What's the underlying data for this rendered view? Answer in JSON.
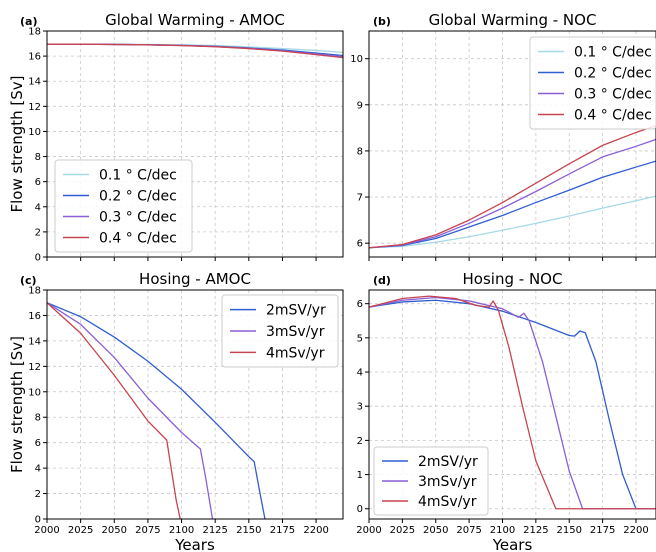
{
  "colors": {
    "light_blue": "#a6d9e6",
    "blue": "#2f5ed1",
    "purple": "#8a5fd8",
    "red": "#c8444f"
  },
  "chart_data": [
    {
      "panel": "(a)",
      "title": "Global Warming - AMOC",
      "type": "line",
      "ylabel": "Flow strength [Sv]",
      "xlabel": "",
      "xlim": [
        2000,
        2220
      ],
      "ylim": [
        0,
        18
      ],
      "xticks": [
        2000,
        2025,
        2050,
        2075,
        2100,
        2125,
        2150,
        2175,
        2200
      ],
      "yticks": [
        0,
        2,
        4,
        6,
        8,
        10,
        12,
        14,
        16,
        18
      ],
      "show_xtick_labels": false,
      "legend": "lower-left",
      "grid": true,
      "series": [
        {
          "name": "0.1  ° C/dec",
          "color": "#a6d9e6",
          "x": [
            2000,
            2025,
            2050,
            2075,
            2100,
            2125,
            2150,
            2175,
            2200,
            2220
          ],
          "y": [
            16.95,
            16.95,
            16.94,
            16.92,
            16.89,
            16.84,
            16.73,
            16.6,
            16.45,
            16.3
          ]
        },
        {
          "name": "0.2  ° C/dec",
          "color": "#2f5ed1",
          "x": [
            2000,
            2025,
            2050,
            2075,
            2100,
            2125,
            2150,
            2175,
            2200,
            2220
          ],
          "y": [
            16.95,
            16.95,
            16.93,
            16.9,
            16.86,
            16.78,
            16.65,
            16.48,
            16.25,
            16.05
          ]
        },
        {
          "name": "0.3  ° C/dec",
          "color": "#8a5fd8",
          "x": [
            2000,
            2025,
            2050,
            2075,
            2100,
            2125,
            2150,
            2175,
            2200,
            2220
          ],
          "y": [
            16.95,
            16.95,
            16.93,
            16.9,
            16.85,
            16.76,
            16.62,
            16.43,
            16.18,
            15.95
          ]
        },
        {
          "name": "0.4  ° C/dec",
          "color": "#c8444f",
          "x": [
            2000,
            2025,
            2050,
            2075,
            2100,
            2125,
            2150,
            2175,
            2200,
            2220
          ],
          "y": [
            16.95,
            16.95,
            16.93,
            16.9,
            16.84,
            16.75,
            16.6,
            16.4,
            16.12,
            15.88
          ]
        }
      ]
    },
    {
      "panel": "(b)",
      "title": "Global Warming - NOC",
      "type": "line",
      "ylabel": "",
      "xlabel": "",
      "xlim": [
        2000,
        2215
      ],
      "ylim": [
        5.7,
        10.6
      ],
      "xticks": [
        2000,
        2025,
        2050,
        2075,
        2100,
        2125,
        2150,
        2175,
        2200
      ],
      "yticks": [
        6,
        7,
        8,
        9,
        10
      ],
      "show_xtick_labels": false,
      "legend": "top-right",
      "grid": true,
      "series": [
        {
          "name": "0.1  ° C/dec",
          "color": "#a6d9e6",
          "x": [
            2000,
            2025,
            2050,
            2075,
            2100,
            2125,
            2150,
            2175,
            2200,
            2215
          ],
          "y": [
            5.9,
            5.93,
            6.02,
            6.14,
            6.28,
            6.43,
            6.59,
            6.76,
            6.92,
            7.02
          ]
        },
        {
          "name": "0.2  ° C/dec",
          "color": "#2f5ed1",
          "x": [
            2000,
            2025,
            2050,
            2075,
            2100,
            2125,
            2150,
            2175,
            2200,
            2215
          ],
          "y": [
            5.9,
            5.95,
            6.1,
            6.35,
            6.6,
            6.88,
            7.15,
            7.43,
            7.65,
            7.78
          ]
        },
        {
          "name": "0.3  ° C/dec",
          "color": "#8a5fd8",
          "x": [
            2000,
            2025,
            2050,
            2075,
            2100,
            2125,
            2150,
            2175,
            2200,
            2215
          ],
          "y": [
            5.9,
            5.96,
            6.14,
            6.43,
            6.76,
            7.12,
            7.5,
            7.87,
            8.1,
            8.25
          ]
        },
        {
          "name": "0.4  ° C/dec",
          "color": "#c8444f",
          "x": [
            2000,
            2025,
            2050,
            2075,
            2100,
            2125,
            2150,
            2175,
            2200,
            2215
          ],
          "y": [
            5.9,
            5.97,
            6.18,
            6.5,
            6.88,
            7.3,
            7.72,
            8.12,
            8.4,
            8.55
          ]
        }
      ]
    },
    {
      "panel": "(c)",
      "title": "Hosing - AMOC",
      "type": "line",
      "ylabel": "Flow strength [Sv]",
      "xlabel": "Years",
      "xlim": [
        2000,
        2220
      ],
      "ylim": [
        0,
        18
      ],
      "xticks": [
        2000,
        2025,
        2050,
        2075,
        2100,
        2125,
        2150,
        2175,
        2200
      ],
      "yticks": [
        0,
        2,
        4,
        6,
        8,
        10,
        12,
        14,
        16,
        18
      ],
      "show_xtick_labels": true,
      "legend": "top-right",
      "grid": true,
      "series": [
        {
          "name": "2mSV/yr",
          "color": "#2f5ed1",
          "x": [
            2000,
            2025,
            2050,
            2075,
            2100,
            2125,
            2150,
            2154,
            2158,
            2162
          ],
          "y": [
            17,
            15.9,
            14.3,
            12.4,
            10.2,
            7.6,
            4.9,
            4.5,
            2.2,
            0
          ]
        },
        {
          "name": "3mSv/yr",
          "color": "#8a5fd8",
          "x": [
            2000,
            2025,
            2050,
            2075,
            2100,
            2114,
            2118,
            2121,
            2123
          ],
          "y": [
            17,
            15.3,
            12.7,
            9.5,
            6.8,
            5.5,
            3.2,
            1.3,
            0
          ]
        },
        {
          "name": "4mSv/yr",
          "color": "#c8444f",
          "x": [
            2000,
            2025,
            2050,
            2075,
            2089,
            2093,
            2096,
            2099
          ],
          "y": [
            17,
            14.6,
            11.3,
            7.7,
            6.2,
            3.5,
            1.5,
            0
          ]
        }
      ]
    },
    {
      "panel": "(d)",
      "title": "Hosing - NOC",
      "type": "line",
      "ylabel": "",
      "xlabel": "Years",
      "xlim": [
        2000,
        2215
      ],
      "ylim": [
        -0.3,
        6.4
      ],
      "xticks": [
        2000,
        2025,
        2050,
        2075,
        2100,
        2125,
        2150,
        2175,
        2200
      ],
      "yticks": [
        0,
        1,
        2,
        3,
        4,
        5,
        6
      ],
      "show_xtick_labels": true,
      "legend": "lower-left",
      "grid": true,
      "series": [
        {
          "name": "2mSV/yr",
          "color": "#2f5ed1",
          "x": [
            2000,
            2025,
            2050,
            2075,
            2100,
            2125,
            2150,
            2154,
            2158,
            2162,
            2170,
            2180,
            2190,
            2200,
            2215
          ],
          "y": [
            5.9,
            6.05,
            6.1,
            6.0,
            5.78,
            5.45,
            5.07,
            5.05,
            5.2,
            5.15,
            4.3,
            2.6,
            1.0,
            0.0,
            0.0
          ]
        },
        {
          "name": "3mSv/yr",
          "color": "#8a5fd8",
          "x": [
            2000,
            2025,
            2050,
            2075,
            2100,
            2112,
            2116,
            2120,
            2130,
            2140,
            2150,
            2160,
            2175,
            2200,
            2215
          ],
          "y": [
            5.9,
            6.1,
            6.18,
            6.08,
            5.85,
            5.6,
            5.72,
            5.5,
            4.3,
            2.7,
            1.1,
            0.0,
            0.0,
            0.0,
            0.0
          ]
        },
        {
          "name": "4mSv/yr",
          "color": "#c8444f",
          "x": [
            2000,
            2025,
            2045,
            2065,
            2080,
            2090,
            2093,
            2097,
            2105,
            2115,
            2125,
            2140,
            2160,
            2200,
            2215
          ],
          "y": [
            5.9,
            6.15,
            6.22,
            6.15,
            5.95,
            5.9,
            6.08,
            5.8,
            4.7,
            3.0,
            1.4,
            0.0,
            0.0,
            0.0,
            0.0
          ]
        }
      ]
    }
  ]
}
